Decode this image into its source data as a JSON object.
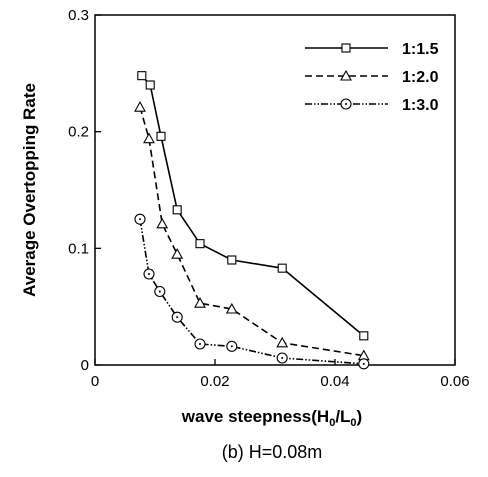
{
  "chart_data": {
    "type": "line",
    "xlabel": "wave steepness(H",
    "xlabel_sub1": "0",
    "xlabel_mid": "/L",
    "xlabel_sub2": "0",
    "xlabel_end": ")",
    "ylabel": "Average Overtopping Rate",
    "caption": "(b) H=0.08m",
    "xlim": [
      0,
      0.06
    ],
    "ylim": [
      0,
      0.3
    ],
    "xticks": [
      0,
      0.02,
      0.04,
      0.06
    ],
    "xtick_labels": [
      "0",
      "0.02",
      "0.04",
      "0.06"
    ],
    "yticks": [
      0,
      0.1,
      0.2,
      0.3
    ],
    "ytick_labels": [
      "0",
      "0.1",
      "0.2",
      "0.3"
    ],
    "grid": false,
    "legend_position": "top-right",
    "series": [
      {
        "name": "1:1.5",
        "marker": "square",
        "line_style": "solid",
        "x": [
          0.0078,
          0.0092,
          0.011,
          0.0137,
          0.0175,
          0.0228,
          0.0312,
          0.0448
        ],
        "y": [
          0.248,
          0.24,
          0.196,
          0.133,
          0.104,
          0.09,
          0.083,
          0.025
        ]
      },
      {
        "name": "1:2.0",
        "marker": "triangle",
        "line_style": "dashed",
        "x": [
          0.0075,
          0.009,
          0.0112,
          0.0137,
          0.0175,
          0.0228,
          0.0312,
          0.0448
        ],
        "y": [
          0.221,
          0.194,
          0.121,
          0.095,
          0.053,
          0.048,
          0.019,
          0.008
        ]
      },
      {
        "name": "1:3.0",
        "marker": "circle",
        "line_style": "dashdotdot",
        "x": [
          0.0075,
          0.009,
          0.0108,
          0.0137,
          0.0175,
          0.0228,
          0.0312,
          0.0448
        ],
        "y": [
          0.125,
          0.078,
          0.063,
          0.041,
          0.018,
          0.016,
          0.006,
          0.001
        ]
      }
    ]
  }
}
